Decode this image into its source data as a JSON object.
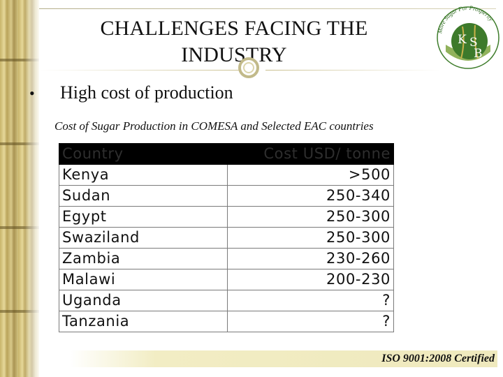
{
  "slide": {
    "title_line1": "CHALLENGES FACING THE",
    "title_line2": "INDUSTRY",
    "bullet_symbol": "•",
    "bullet_text": "High cost of production",
    "caption": "Cost of Sugar Production in COMESA and Selected EAC countries",
    "footer": "ISO 9001:2008 Certified"
  },
  "logo": {
    "ring_text": "More Sugar For Prosperity",
    "letters": [
      "K",
      "S",
      "B"
    ],
    "colors": {
      "ring": "#3f7d2c",
      "inner": "#2f6b22",
      "letters": "#ffffff",
      "accent": "#c9b24a"
    }
  },
  "table": {
    "headers": [
      "Country",
      "Cost USD/ tonne"
    ],
    "rows": [
      [
        "Kenya",
        ">500"
      ],
      [
        "Sudan",
        "250-340"
      ],
      [
        "Egypt",
        "250-300"
      ],
      [
        "Swaziland",
        "250-300"
      ],
      [
        "Zambia",
        "230-260"
      ],
      [
        "Malawi",
        "200-230"
      ],
      [
        "Uganda",
        "?"
      ],
      [
        "Tanzania",
        "?"
      ]
    ]
  }
}
